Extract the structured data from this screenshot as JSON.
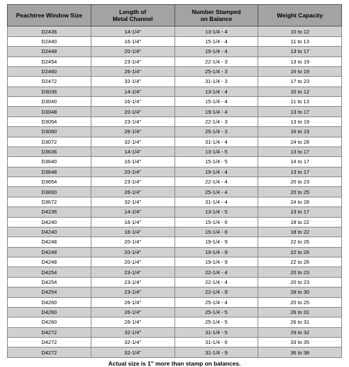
{
  "columns": [
    "Peachtree Window Size",
    "Length of\nMetal Channel",
    "Number Stamped\non Balance",
    "Weight Capacity"
  ],
  "rows": [
    [
      "D2436",
      "14-1/4\"",
      "13-1/4 - 4",
      "10 to 12"
    ],
    [
      "D2440",
      "16-1/4\"",
      "15-1/4 - 4",
      "11 to 13"
    ],
    [
      "D2448",
      "20-1/4\"",
      "19-1/4 - 4",
      "13 to 17"
    ],
    [
      "D2454",
      "23-1/4\"",
      "22-1/4 - 3",
      "13 to 19"
    ],
    [
      "D2460",
      "26-1/4\"",
      "25-1/4 - 3",
      "16 to 19"
    ],
    [
      "D2472",
      "32-1/4\"",
      "31-1/4 - 3",
      "17 to 23"
    ],
    [
      "D3036",
      "14-1/4\"",
      "13-1/4 - 4",
      "10 to 12"
    ],
    [
      "D3040",
      "16-1/4\"",
      "15-1/4 - 4",
      "11 to 13"
    ],
    [
      "D3048",
      "20-1/4\"",
      "19-1/4 - 4",
      "13 to 17"
    ],
    [
      "D3054",
      "23-1/4\"",
      "22-1/4 - 3",
      "13 to 19"
    ],
    [
      "D3060",
      "26-1/4\"",
      "25-1/4 - 3",
      "16 to 19"
    ],
    [
      "D3072",
      "32-1/4\"",
      "31-1/4 - 4",
      "24 to 28"
    ],
    [
      "D3636",
      "14-1/4\"",
      "13-1/4 - 5",
      "13 to 17"
    ],
    [
      "D3640",
      "16-1/4\"",
      "15-1/4 - 5",
      "14 to 17"
    ],
    [
      "D3648",
      "20-1/4\"",
      "19-1/4 - 4",
      "13 to 17"
    ],
    [
      "D3654",
      "23-1/4\"",
      "22-1/4 - 4",
      "20 to 23"
    ],
    [
      "D3660",
      "26-1/4\"",
      "25-1/4 - 4",
      "20 to 25"
    ],
    [
      "D3672",
      "32-1/4\"",
      "31-1/4 - 4",
      "24 to 28"
    ],
    [
      "D4236",
      "14-1/4\"",
      "13-1/4 - 5",
      "13 to 17"
    ],
    [
      "D4240",
      "16-1/4\"",
      "15-1/4 - 6",
      "18 to 22"
    ],
    [
      "D4240",
      "16-1/4\"",
      "15-1/4 - 6",
      "18 to 22"
    ],
    [
      "D4248",
      "20-1/4\"",
      "19-1/4 - 9",
      "22 to 26"
    ],
    [
      "D4248",
      "20-1/4\"",
      "19-1/4 - 9",
      "22 to 26"
    ],
    [
      "D4248",
      "20-1/4\"",
      "19-1/4 - 9",
      "22 to 26"
    ],
    [
      "D4254",
      "23-1/4\"",
      "22-1/4 - 4",
      "20 to 23"
    ],
    [
      "D4254",
      "23-1/4\"",
      "22-1/4 - 4",
      "20 to 23"
    ],
    [
      "D4254",
      "23-1/4\"",
      "22-1/4 - 9",
      "28 to 30"
    ],
    [
      "D4260",
      "26-1/4\"",
      "25-1/4 - 4",
      "20 to 25"
    ],
    [
      "D4260",
      "26-1/4\"",
      "25-1/4 - 5",
      "26 to 31"
    ],
    [
      "D4260",
      "26-1/4\"",
      "25-1/4 - 5",
      "26 to 31"
    ],
    [
      "D4272",
      "32-1/4\"",
      "31-1/4 - 5",
      "29 to 32"
    ],
    [
      "D4272",
      "32-1/4\"",
      "31-1/4 - 6",
      "33 to 35"
    ],
    [
      "D4272",
      "32-1/4\"",
      "31-1/4 - 9",
      "36 to 38"
    ]
  ],
  "footnote": "Actual size is 1\" more than stamp on balances.",
  "style": {
    "header_bg": "#a3a3a3",
    "row_odd_bg": "#d0d0d0",
    "row_even_bg": "#ffffff",
    "border_color": "#888888",
    "header_fontsize_pt": 8.5,
    "cell_fontsize_pt": 7.5,
    "font_family": "Arial"
  }
}
